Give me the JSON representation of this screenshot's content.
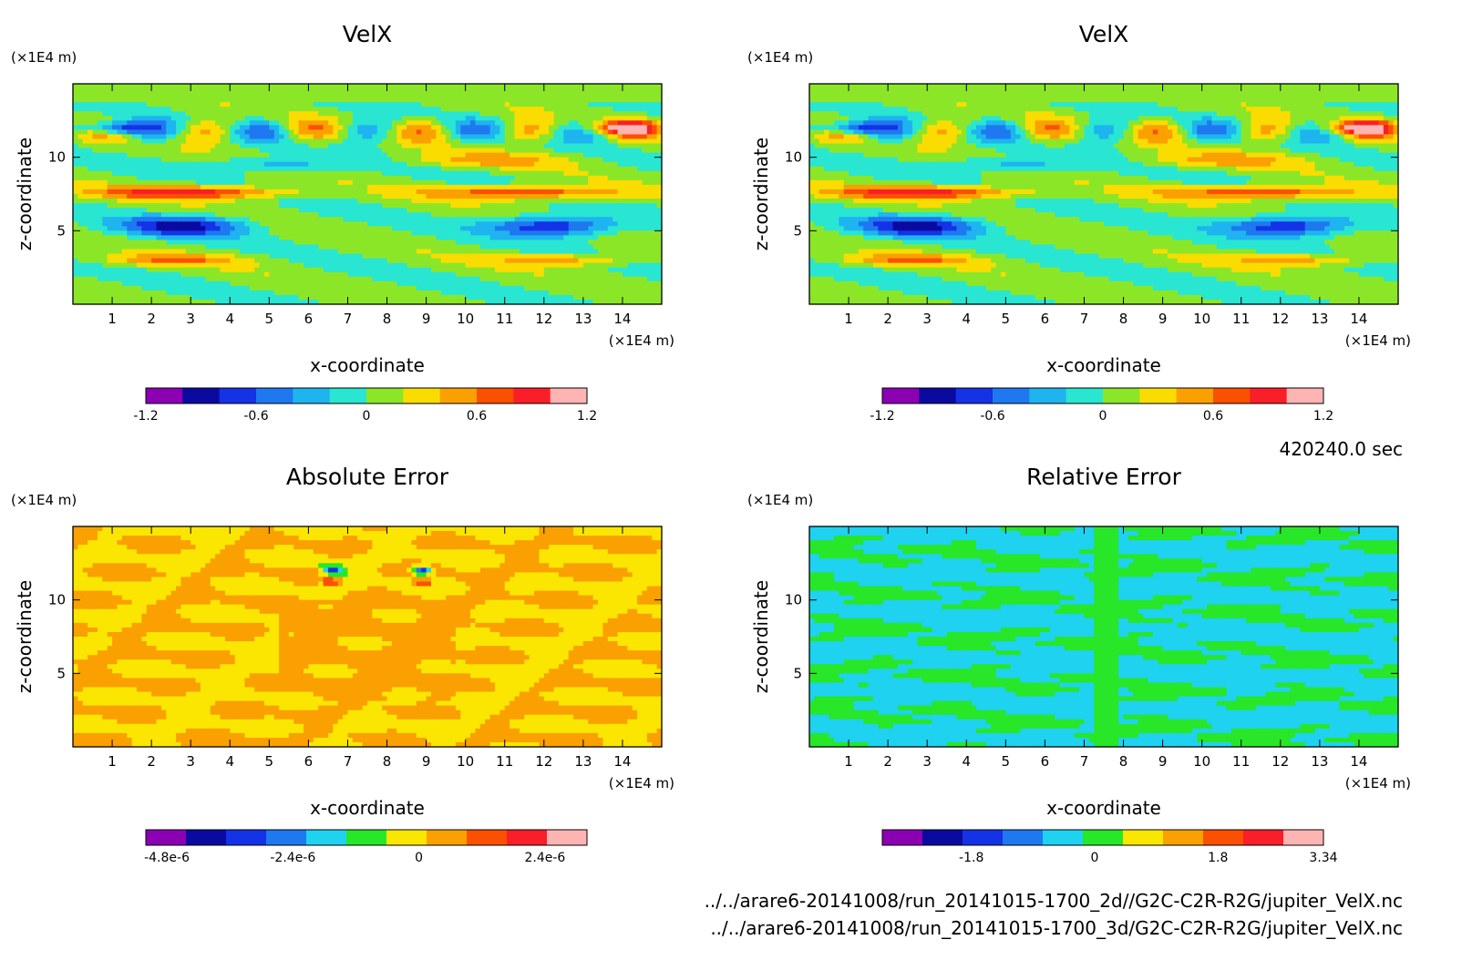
{
  "time_label": "420240.0 sec",
  "file_paths": [
    "../../arare6-20141008/run_20141015-1700_2d//G2C-C2R-R2G/jupiter_VelX.nc",
    "../../arare6-20141008/run_20141015-1700_3d/G2C-C2R-R2G/jupiter_VelX.nc"
  ],
  "colors": {
    "cb_velx": [
      "#8c00b4",
      "#0a0aa0",
      "#1432e6",
      "#1e78f0",
      "#1eb4f0",
      "#28e6d2",
      "#8ce628",
      "#fadc00",
      "#faa000",
      "#fa5000",
      "#fa1e28",
      "#ffb4b4"
    ],
    "cb_abs": [
      "#8c00b4",
      "#0a0aa0",
      "#1432e6",
      "#1e78f0",
      "#1ed2f0",
      "#28e628",
      "#fae600",
      "#faa000",
      "#fa5000",
      "#fa1e28",
      "#ffb4b4"
    ],
    "cb_rel": [
      "#8c00b4",
      "#0a0aa0",
      "#1432e6",
      "#1e78f0",
      "#1ed2f0",
      "#28e628",
      "#fae600",
      "#faa000",
      "#fa5000",
      "#fa1e28",
      "#ffb4b4"
    ]
  },
  "chart_data": [
    {
      "type": "heatmap",
      "title": "VelX",
      "xlabel": "x-coordinate",
      "ylabel": "z-coordinate",
      "x_unit": "(×1E4 m)",
      "y_unit": "(×1E4 m)",
      "xlim": [
        0,
        15
      ],
      "ylim": [
        0,
        15
      ],
      "x_ticks": [
        "1",
        "2",
        "3",
        "4",
        "5",
        "6",
        "7",
        "8",
        "9",
        "10",
        "11",
        "12",
        "13",
        "14"
      ],
      "y_ticks": [
        "5",
        "10"
      ],
      "colorbar": {
        "min": -1.2,
        "max": 1.2,
        "levels": 12,
        "tick_labels": [
          "-1.2",
          "-0.6",
          "0",
          "0.6",
          "1.2"
        ]
      }
    },
    {
      "type": "heatmap",
      "title": "VelX",
      "xlabel": "x-coordinate",
      "ylabel": "z-coordinate",
      "x_unit": "(×1E4 m)",
      "y_unit": "(×1E4 m)",
      "xlim": [
        0,
        15
      ],
      "ylim": [
        0,
        15
      ],
      "x_ticks": [
        "1",
        "2",
        "3",
        "4",
        "5",
        "6",
        "7",
        "8",
        "9",
        "10",
        "11",
        "12",
        "13",
        "14"
      ],
      "y_ticks": [
        "5",
        "10"
      ],
      "colorbar": {
        "min": -1.2,
        "max": 1.2,
        "levels": 12,
        "tick_labels": [
          "-1.2",
          "-0.6",
          "0",
          "0.6",
          "1.2"
        ]
      }
    },
    {
      "type": "heatmap",
      "title": "Absolute Error",
      "xlabel": "x-coordinate",
      "ylabel": "z-coordinate",
      "x_unit": "(×1E4 m)",
      "y_unit": "(×1E4 m)",
      "xlim": [
        0,
        15
      ],
      "ylim": [
        0,
        15
      ],
      "x_ticks": [
        "1",
        "2",
        "3",
        "4",
        "5",
        "6",
        "7",
        "8",
        "9",
        "10",
        "11",
        "12",
        "13",
        "14"
      ],
      "y_ticks": [
        "5",
        "10"
      ],
      "colorbar": {
        "min": -5.2e-06,
        "max": 3.2e-06,
        "levels": 11,
        "tick_labels": [
          "-4.8e-6",
          "-2.4e-6",
          "0",
          "2.4e-6"
        ]
      }
    },
    {
      "type": "heatmap",
      "title": "Relative Error",
      "xlabel": "x-coordinate",
      "ylabel": "z-coordinate",
      "x_unit": "(×1E4 m)",
      "y_unit": "(×1E4 m)",
      "xlim": [
        0,
        15
      ],
      "ylim": [
        0,
        15
      ],
      "x_ticks": [
        "1",
        "2",
        "3",
        "4",
        "5",
        "6",
        "7",
        "8",
        "9",
        "10",
        "11",
        "12",
        "13",
        "14"
      ],
      "y_ticks": [
        "5",
        "10"
      ],
      "colorbar": {
        "min": -3.1,
        "max": 3.34,
        "levels": 11,
        "tick_labels": [
          "-1.8",
          "0",
          "1.8",
          "3.34"
        ]
      }
    }
  ]
}
